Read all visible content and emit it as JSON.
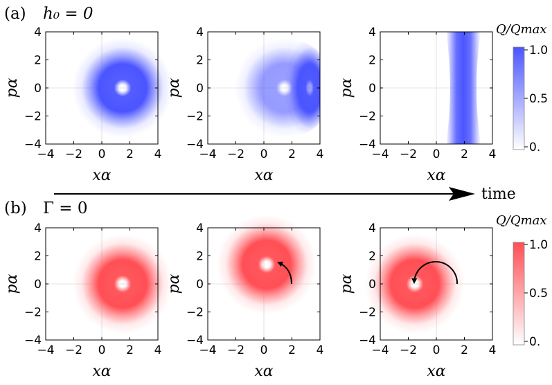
{
  "panel_a_label": "(a)",
  "panel_a_condition": "h₀ = 0",
  "panel_b_label": "(b)",
  "panel_b_condition": "Γ = 0",
  "time_label": "time",
  "colorbar_label": "Q/Qmax",
  "colorbar_ticks": [
    "1.0",
    "0.5",
    "0."
  ],
  "colors": {
    "blue": "#4b55ff",
    "red": "#ff4f55",
    "arrow": "#000000"
  },
  "chart_data": [
    {
      "type": "heatmap",
      "row": "a",
      "snapshot": 1,
      "xlabel": "xα",
      "ylabel": "pα",
      "xlim": [
        -4,
        4
      ],
      "ylim": [
        -4,
        4
      ],
      "xticks": [
        -4,
        -2,
        0,
        2,
        4
      ],
      "yticks": [
        -4,
        -2,
        0,
        2,
        4
      ],
      "shape": "ring",
      "center": [
        1.5,
        0
      ],
      "ring_radius": 1.0,
      "ring_width": 0.75,
      "colormap": "blue"
    },
    {
      "type": "heatmap",
      "row": "a",
      "snapshot": 2,
      "xlabel": "xα",
      "ylabel": "pα",
      "xlim": [
        -4,
        4
      ],
      "ylim": [
        -4,
        4
      ],
      "xticks": [
        -4,
        -2,
        0,
        2,
        4
      ],
      "yticks": [
        -4,
        -2,
        0,
        2,
        4
      ],
      "shape": "half-ring",
      "center": [
        1.5,
        0
      ],
      "ring_radius": 1.0,
      "ring_width": 0.75,
      "colormap": "blue"
    },
    {
      "type": "heatmap",
      "row": "a",
      "snapshot": 3,
      "xlabel": "xα",
      "ylabel": "pα",
      "xlim": [
        -4,
        4
      ],
      "ylim": [
        -4,
        4
      ],
      "xticks": [
        -4,
        -2,
        0,
        2,
        4
      ],
      "yticks": [
        -4,
        -2,
        0,
        2,
        4
      ],
      "shape": "vertical-band",
      "band_center_x": 2.0,
      "band_width": 1.3,
      "colormap": "blue"
    },
    {
      "type": "heatmap",
      "row": "b",
      "snapshot": 1,
      "xlabel": "xα",
      "ylabel": "pα",
      "xlim": [
        -4,
        4
      ],
      "ylim": [
        -4,
        4
      ],
      "xticks": [
        -4,
        -2,
        0,
        2,
        4
      ],
      "yticks": [
        -4,
        -2,
        0,
        2,
        4
      ],
      "shape": "ring",
      "center": [
        1.5,
        0
      ],
      "ring_radius": 1.0,
      "ring_width": 0.75,
      "colormap": "red"
    },
    {
      "type": "heatmap",
      "row": "b",
      "snapshot": 2,
      "xlabel": "xα",
      "ylabel": "pα",
      "xlim": [
        -4,
        4
      ],
      "ylim": [
        -4,
        4
      ],
      "xticks": [
        -4,
        -2,
        0,
        2,
        4
      ],
      "yticks": [
        -4,
        -2,
        0,
        2,
        4
      ],
      "shape": "ring",
      "center": [
        0.2,
        1.3
      ],
      "ring_radius": 1.0,
      "ring_width": 0.75,
      "colormap": "red",
      "rotation_arrow": {
        "from": [
          1.6,
          0
        ],
        "to": [
          0.4,
          1.2
        ]
      }
    },
    {
      "type": "heatmap",
      "row": "b",
      "snapshot": 3,
      "xlabel": "xα",
      "ylabel": "pα",
      "xlim": [
        -4,
        4
      ],
      "ylim": [
        -4,
        4
      ],
      "xticks": [
        -4,
        -2,
        0,
        2,
        4
      ],
      "yticks": [
        -4,
        -2,
        0,
        2,
        4
      ],
      "shape": "ring",
      "center": [
        -1.5,
        0
      ],
      "ring_radius": 1.0,
      "ring_width": 0.75,
      "colormap": "red",
      "rotation_arrow": {
        "from": [
          1.5,
          0
        ],
        "to": [
          -1.5,
          0
        ]
      }
    }
  ]
}
